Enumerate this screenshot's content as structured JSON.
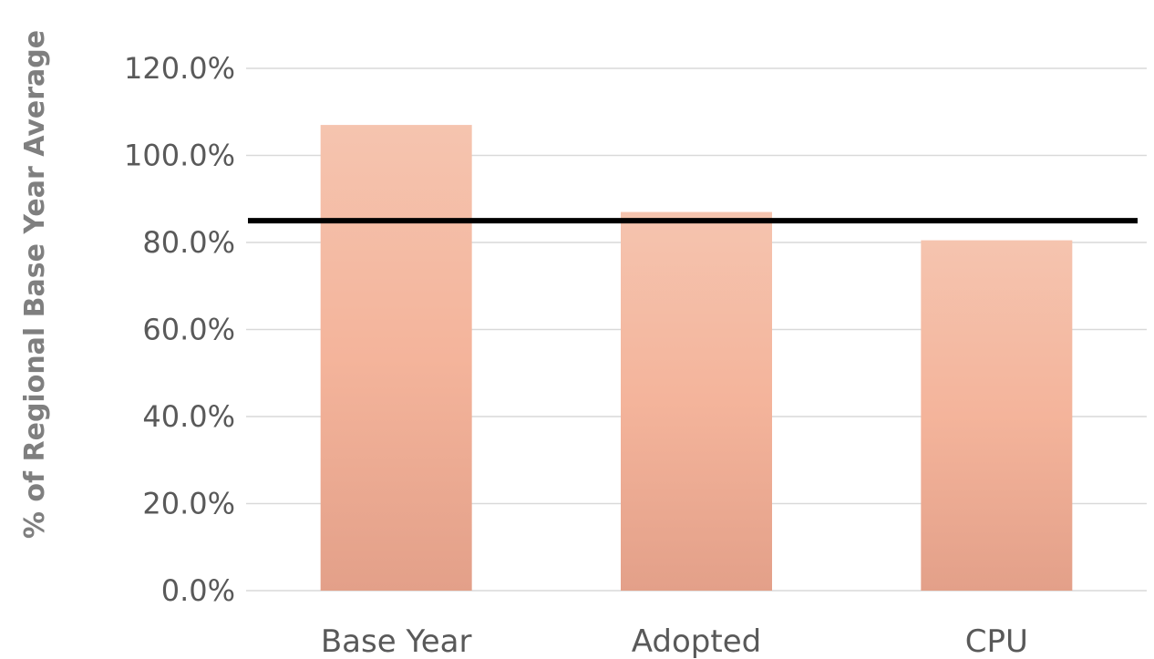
{
  "chart_data": {
    "type": "bar",
    "title": "",
    "xlabel": "",
    "ylabel": "% of Regional Base Year Average",
    "categories": [
      "Base Year",
      "Adopted",
      "CPU"
    ],
    "values": [
      107.0,
      87.0,
      80.5
    ],
    "value_unit": "%",
    "ylim": [
      0,
      120
    ],
    "yticks": [
      0,
      20,
      40,
      60,
      80,
      100,
      120
    ],
    "ytick_labels": [
      "0.0%",
      "20.0%",
      "40.0%",
      "60.0%",
      "80.0%",
      "100.0%",
      "120.0%"
    ],
    "reference_line": {
      "value": 85
    },
    "grid": true,
    "legend": "none",
    "colors": {
      "bar_top": "#f5c4af",
      "bar_mid": "#f4b49b",
      "bar_bottom": "#e3a089",
      "reference_line": "#000000",
      "gridline": "#d9d9d9",
      "text": "#595959",
      "axis_title": "#7f7f7f"
    }
  }
}
